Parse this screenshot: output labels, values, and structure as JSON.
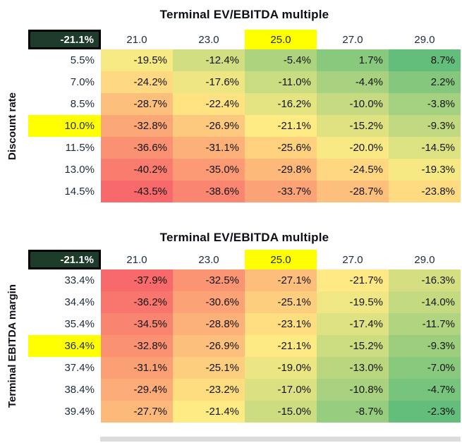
{
  "style": {
    "background": "#ffffff",
    "highlight": "#ffff00",
    "corner_fill": "#1e3c2c",
    "corner_text": "#ffffff",
    "corner_border": "#000000",
    "scale_min_color": "#f8696b",
    "scale_mid_color": "#ffeb84",
    "scale_max_color": "#63be7b",
    "header_text": "#1b2a3c",
    "value_text": "#131313",
    "bottom_strip": "#dcdcdc"
  },
  "chart_data": [
    {
      "type": "heatmap",
      "title": "Terminal EV/EBITDA multiple",
      "ylabel": "Discount rate",
      "corner_label": "-21.1%",
      "x_ticks": [
        "21.0",
        "23.0",
        "25.0",
        "27.0",
        "29.0"
      ],
      "y_ticks": [
        "5.5%",
        "7.0%",
        "8.5%",
        "10.0%",
        "11.5%",
        "13.0%",
        "14.5%"
      ],
      "highlighted_x_index": 2,
      "highlighted_y_index": 3,
      "value_unit": "percent",
      "colorscale": "red=min, yellow=median, green=max",
      "values": [
        [
          -19.5,
          -12.4,
          -5.4,
          1.7,
          8.7
        ],
        [
          -24.2,
          -17.6,
          -11.0,
          -4.4,
          2.2
        ],
        [
          -28.7,
          -22.4,
          -16.2,
          -10.0,
          -3.8
        ],
        [
          -32.8,
          -26.9,
          -21.1,
          -15.2,
          -9.3
        ],
        [
          -36.6,
          -31.1,
          -25.6,
          -20.0,
          -14.5
        ],
        [
          -40.2,
          -35.0,
          -29.8,
          -24.5,
          -19.3
        ],
        [
          -43.5,
          -38.6,
          -33.7,
          -28.7,
          -23.8
        ]
      ]
    },
    {
      "type": "heatmap",
      "title": "Terminal EV/EBITDA multiple",
      "ylabel": "Terminal EBITDA margin",
      "corner_label": "-21.1%",
      "x_ticks": [
        "21.0",
        "23.0",
        "25.0",
        "27.0",
        "29.0"
      ],
      "y_ticks": [
        "33.4%",
        "34.4%",
        "35.4%",
        "36.4%",
        "37.4%",
        "38.4%",
        "39.4%"
      ],
      "highlighted_x_index": 2,
      "highlighted_y_index": 3,
      "value_unit": "percent",
      "colorscale": "red=min, yellow=median, green=max",
      "values": [
        [
          -37.9,
          -32.5,
          -27.1,
          -21.7,
          -16.3
        ],
        [
          -36.2,
          -30.6,
          -25.1,
          -19.5,
          -14.0
        ],
        [
          -34.5,
          -28.8,
          -23.1,
          -17.4,
          -11.7
        ],
        [
          -32.8,
          -26.9,
          -21.1,
          -15.2,
          -9.3
        ],
        [
          -31.1,
          -25.1,
          -19.0,
          -13.0,
          -7.0
        ],
        [
          -29.4,
          -23.2,
          -17.0,
          -10.8,
          -4.7
        ],
        [
          -27.7,
          -21.4,
          -15.0,
          -8.7,
          -2.3
        ]
      ]
    }
  ]
}
